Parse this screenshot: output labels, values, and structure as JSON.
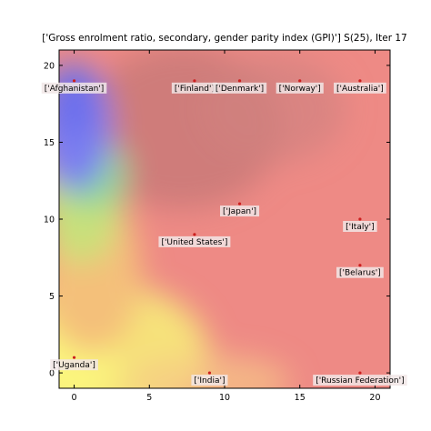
{
  "chart_data": {
    "type": "scatter",
    "title": "['Gross enrolment ratio, secondary, gender parity index (GPI)'] S(25), Iter 17",
    "xlabel": "",
    "ylabel": "",
    "xlim": [
      -1,
      21
    ],
    "ylim": [
      -1,
      21
    ],
    "xticks": [
      0,
      5,
      10,
      15,
      20
    ],
    "yticks": [
      0,
      5,
      10,
      15,
      20
    ],
    "grid": false,
    "background": "heatmap: red/salmon over most of the map; blue in the upper-left corner grading through green and yellow toward the lower-left",
    "points": [
      {
        "label": "['Afghanistan']",
        "x": 0,
        "y": 19
      },
      {
        "label": "['Finland']",
        "x": 8,
        "y": 19
      },
      {
        "label": "['Denmark']",
        "x": 11,
        "y": 19
      },
      {
        "label": "['Norway']",
        "x": 15,
        "y": 19
      },
      {
        "label": "['Australia']",
        "x": 19,
        "y": 19
      },
      {
        "label": "['Japan']",
        "x": 11,
        "y": 11
      },
      {
        "label": "['Italy']",
        "x": 19,
        "y": 10
      },
      {
        "label": "['United States']",
        "x": 8,
        "y": 9
      },
      {
        "label": "['Belarus']",
        "x": 19,
        "y": 7
      },
      {
        "label": "['Uganda']",
        "x": 0,
        "y": 1
      },
      {
        "label": "['India']",
        "x": 9,
        "y": 0
      },
      {
        "label": "['Russian Federation']",
        "x": 19,
        "y": 0
      }
    ]
  },
  "colors": {
    "marker": "#cc1f1f",
    "heat_red": "#ee8a85",
    "heat_blue": "#7b7ef0",
    "heat_green": "#a8d868",
    "heat_yellow": "#f6f07a",
    "label_box": "#f1e6e6"
  }
}
